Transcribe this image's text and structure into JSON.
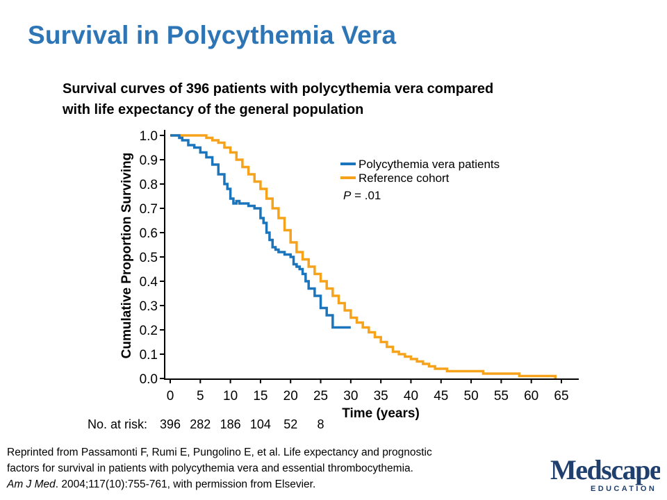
{
  "slide": {
    "title": "Survival in Polycythemia Vera",
    "heading_line1": "Survival curves of 396 patients with polycythemia vera compared",
    "heading_line2": "with life expectancy of the general population"
  },
  "colors": {
    "title": "#2e75b6",
    "pv_series": "#1b75bc",
    "reference_series": "#f7a21b",
    "axis": "#000000"
  },
  "chart_data": {
    "type": "line",
    "step": true,
    "title": "",
    "xlabel": "Time (years)",
    "ylabel": "Cumulative Proportion Surviving",
    "xlim": [
      0,
      65
    ],
    "ylim": [
      0,
      1
    ],
    "xticks": [
      0,
      5,
      10,
      15,
      20,
      25,
      30,
      35,
      40,
      45,
      50,
      55,
      60,
      65
    ],
    "yticks": [
      0.0,
      0.1,
      0.2,
      0.3,
      0.4,
      0.5,
      0.6,
      0.7,
      0.8,
      0.9,
      1.0
    ],
    "ytick_labels": [
      "0.0",
      "0.1",
      "0.2",
      "0.3",
      "0.4",
      "0.5",
      "0.6",
      "0.7",
      "0.8",
      "0.9",
      "1.0"
    ],
    "grid": false,
    "legend_position": "top-right",
    "annotation": {
      "p_italic": "P",
      "p_rest": " = .01"
    },
    "at_risk": {
      "label": "No. at risk:",
      "x": [
        0,
        5,
        10,
        15,
        20,
        25
      ],
      "values": [
        "396",
        "282",
        "186",
        "104",
        "52",
        "8"
      ]
    },
    "series": [
      {
        "name": "Polycythemia vera patients",
        "x": [
          0,
          1.5,
          2,
          3,
          4,
          5,
          6,
          7,
          8,
          9,
          9.5,
          10,
          10.5,
          11,
          11.5,
          12,
          13,
          14,
          15,
          15.5,
          16,
          16.5,
          17,
          17.5,
          18,
          19,
          20,
          20.5,
          21,
          21.5,
          22,
          22.5,
          23,
          24,
          25,
          26,
          27,
          30
        ],
        "y": [
          1.0,
          0.99,
          0.98,
          0.96,
          0.95,
          0.93,
          0.91,
          0.88,
          0.84,
          0.8,
          0.78,
          0.74,
          0.72,
          0.73,
          0.72,
          0.72,
          0.71,
          0.7,
          0.66,
          0.64,
          0.6,
          0.57,
          0.54,
          0.53,
          0.52,
          0.51,
          0.5,
          0.47,
          0.46,
          0.45,
          0.43,
          0.4,
          0.37,
          0.34,
          0.29,
          0.26,
          0.21,
          0.21
        ]
      },
      {
        "name": "Reference cohort",
        "x": [
          0,
          5,
          6,
          7,
          8,
          9,
          10,
          11,
          12,
          13,
          14,
          15,
          16,
          17,
          18,
          19,
          20,
          21,
          22,
          23,
          24,
          25,
          26,
          27,
          28,
          29,
          30,
          31,
          32,
          33,
          34,
          35,
          36,
          37,
          38,
          39,
          40,
          41,
          42,
          43,
          44,
          45,
          46,
          47,
          48,
          50,
          52,
          55,
          58,
          60,
          64
        ],
        "y": [
          1.0,
          1.0,
          0.99,
          0.98,
          0.97,
          0.95,
          0.93,
          0.9,
          0.87,
          0.84,
          0.81,
          0.78,
          0.74,
          0.7,
          0.66,
          0.61,
          0.56,
          0.52,
          0.49,
          0.46,
          0.43,
          0.4,
          0.37,
          0.34,
          0.31,
          0.28,
          0.25,
          0.23,
          0.21,
          0.19,
          0.17,
          0.15,
          0.13,
          0.11,
          0.1,
          0.09,
          0.08,
          0.07,
          0.06,
          0.05,
          0.04,
          0.04,
          0.03,
          0.03,
          0.03,
          0.03,
          0.02,
          0.02,
          0.01,
          0.01,
          0.0
        ]
      }
    ]
  },
  "citation": {
    "line1": "Reprinted from Passamonti F, Rumi E, Pungolino E, et al. Life expectancy and prognostic",
    "line2": "factors for survival in patients with polycythemia vera and essential thrombocythemia.",
    "journal": "Am J Med",
    "line3_rest": ". 2004;117(10):755-761, with permission from Elsevier."
  },
  "logo": {
    "text": "Medscape",
    "subtext": "EDUCATION",
    "color": "#1f3f6e"
  }
}
